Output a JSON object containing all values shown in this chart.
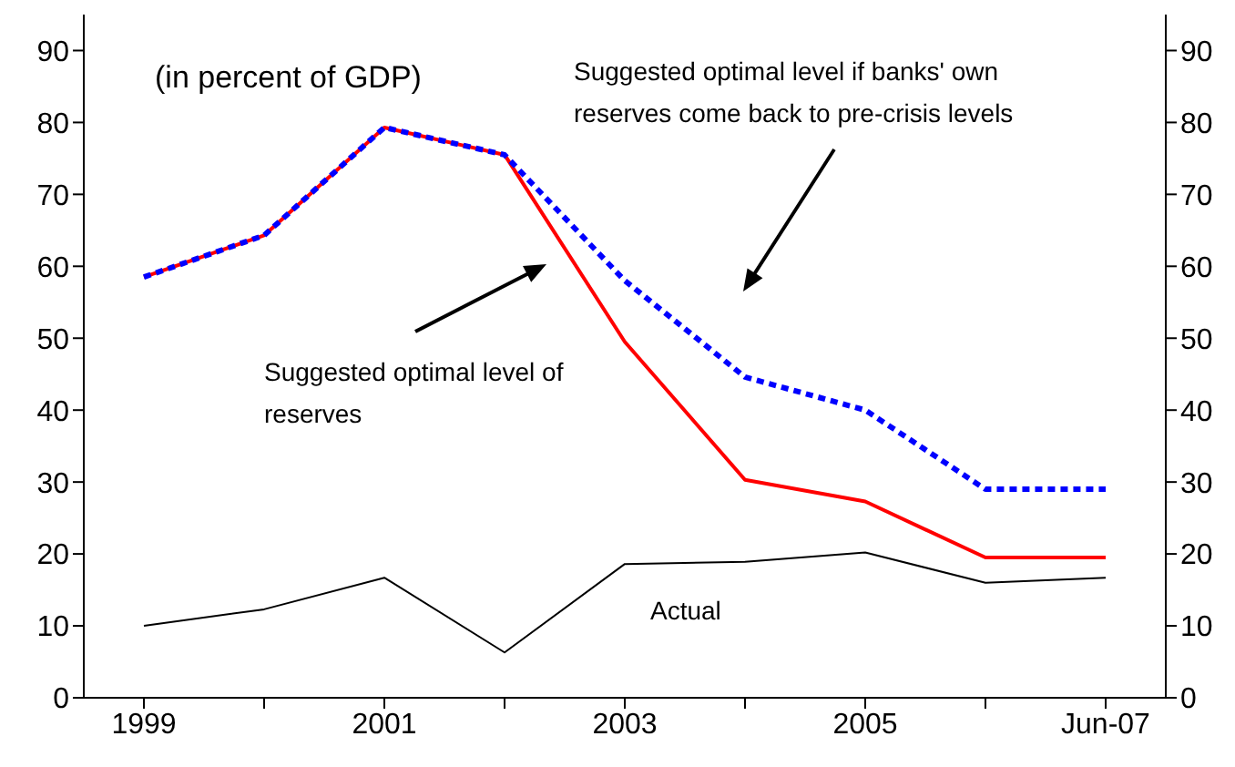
{
  "chart_data": {
    "type": "line",
    "categories": [
      "1999",
      null,
      "2001",
      null,
      "2003",
      null,
      "2005",
      null,
      "Jun-07"
    ],
    "series": [
      {
        "name": "Actual",
        "color": "#000000",
        "line_style": "solid",
        "values": [
          10,
          12.3,
          16.7,
          6.3,
          18.6,
          18.9,
          20.2,
          16,
          16.7
        ]
      },
      {
        "color": "#ff0000",
        "line_style": "solid",
        "values": [
          58.5,
          64.3,
          79.3,
          75.5,
          49.5,
          30.3,
          27.3,
          19.5,
          19.5
        ]
      },
      {
        "color": "#0000ff",
        "line_style": "dotted",
        "values": [
          58.5,
          64.3,
          79.3,
          75.5,
          58,
          44.6,
          40,
          29,
          29
        ]
      }
    ],
    "annotations": [
      "(in percent of GDP)",
      "Suggested optimal level of reserves",
      "Suggested optimal level if banks' own reserves come back to pre-crisis levels"
    ],
    "ylim": [
      0,
      95
    ],
    "yticks": [
      0,
      10,
      20,
      30,
      40,
      50,
      60,
      70,
      80,
      90
    ],
    "y2lim": [
      0,
      95
    ],
    "y2ticks": [
      0,
      10,
      20,
      30,
      40,
      50,
      60,
      70,
      80,
      90
    ],
    "marker": "none",
    "grid": false,
    "legend": false
  }
}
